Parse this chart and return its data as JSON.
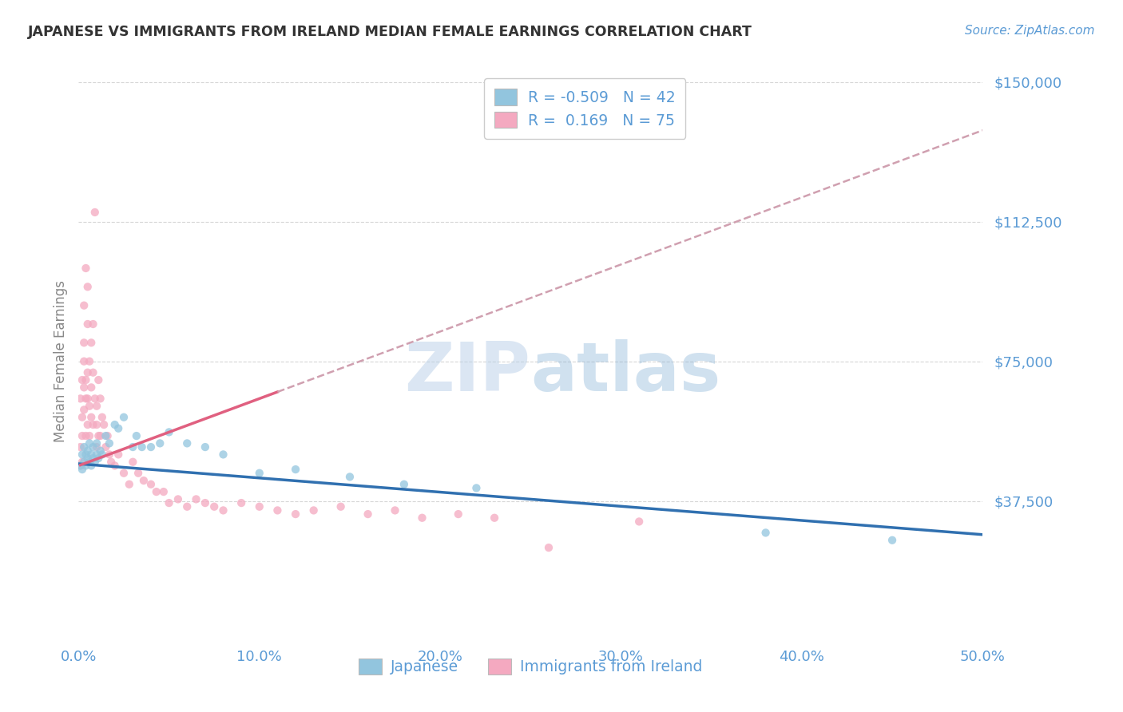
{
  "title": "JAPANESE VS IMMIGRANTS FROM IRELAND MEDIAN FEMALE EARNINGS CORRELATION CHART",
  "source_text": "Source: ZipAtlas.com",
  "ylabel": "Median Female Earnings",
  "xlim": [
    0.0,
    0.5
  ],
  "ylim": [
    0,
    150000
  ],
  "ytick_positions": [
    0,
    37500,
    75000,
    112500,
    150000
  ],
  "ytick_labels": [
    "",
    "$37,500",
    "$75,000",
    "$112,500",
    "$150,000"
  ],
  "xtick_positions": [
    0.0,
    0.1,
    0.2,
    0.3,
    0.4,
    0.5
  ],
  "xtick_labels": [
    "0.0%",
    "10.0%",
    "20.0%",
    "30.0%",
    "40.0%",
    "50.0%"
  ],
  "background_color": "#ffffff",
  "grid_color": "#cccccc",
  "legend_r1": "-0.509",
  "legend_n1": "42",
  "legend_r2": " 0.169",
  "legend_n2": "75",
  "color_japanese": "#92c5de",
  "color_ireland": "#f4a9c0",
  "color_japanese_line": "#3070b0",
  "color_ireland_line": "#e06080",
  "color_ireland_dash": "#d0a0b0",
  "title_color": "#333333",
  "tick_color": "#5b9bd5",
  "japanese_x": [
    0.001,
    0.002,
    0.002,
    0.003,
    0.003,
    0.004,
    0.004,
    0.005,
    0.005,
    0.006,
    0.006,
    0.007,
    0.007,
    0.008,
    0.008,
    0.009,
    0.01,
    0.01,
    0.011,
    0.012,
    0.013,
    0.015,
    0.017,
    0.02,
    0.022,
    0.025,
    0.03,
    0.032,
    0.035,
    0.04,
    0.045,
    0.05,
    0.06,
    0.07,
    0.08,
    0.1,
    0.12,
    0.15,
    0.18,
    0.22,
    0.38,
    0.45
  ],
  "japanese_y": [
    47000,
    46000,
    50000,
    48000,
    52000,
    47000,
    50000,
    49000,
    51000,
    48000,
    53000,
    50000,
    47000,
    49000,
    52000,
    48000,
    50000,
    53000,
    49000,
    51000,
    50000,
    55000,
    53000,
    58000,
    57000,
    60000,
    52000,
    55000,
    52000,
    52000,
    53000,
    56000,
    53000,
    52000,
    50000,
    45000,
    46000,
    44000,
    42000,
    41000,
    29000,
    27000
  ],
  "ireland_x": [
    0.001,
    0.001,
    0.001,
    0.002,
    0.002,
    0.002,
    0.002,
    0.003,
    0.003,
    0.003,
    0.003,
    0.003,
    0.004,
    0.004,
    0.004,
    0.004,
    0.005,
    0.005,
    0.005,
    0.005,
    0.005,
    0.006,
    0.006,
    0.006,
    0.007,
    0.007,
    0.007,
    0.008,
    0.008,
    0.008,
    0.009,
    0.009,
    0.01,
    0.01,
    0.01,
    0.011,
    0.011,
    0.012,
    0.012,
    0.013,
    0.014,
    0.015,
    0.016,
    0.017,
    0.018,
    0.02,
    0.022,
    0.025,
    0.028,
    0.03,
    0.033,
    0.036,
    0.04,
    0.043,
    0.047,
    0.05,
    0.055,
    0.06,
    0.065,
    0.07,
    0.075,
    0.08,
    0.09,
    0.1,
    0.11,
    0.12,
    0.13,
    0.145,
    0.16,
    0.175,
    0.19,
    0.21,
    0.23,
    0.26,
    0.31
  ],
  "ireland_y": [
    47000,
    52000,
    65000,
    60000,
    55000,
    70000,
    48000,
    75000,
    68000,
    80000,
    62000,
    90000,
    55000,
    70000,
    65000,
    100000,
    58000,
    72000,
    85000,
    65000,
    95000,
    63000,
    75000,
    55000,
    68000,
    80000,
    60000,
    72000,
    85000,
    58000,
    115000,
    65000,
    63000,
    52000,
    58000,
    55000,
    70000,
    55000,
    65000,
    60000,
    58000,
    52000,
    55000,
    50000,
    48000,
    47000,
    50000,
    45000,
    42000,
    48000,
    45000,
    43000,
    42000,
    40000,
    40000,
    37000,
    38000,
    36000,
    38000,
    37000,
    36000,
    35000,
    37000,
    36000,
    35000,
    34000,
    35000,
    36000,
    34000,
    35000,
    33000,
    34000,
    33000,
    25000,
    32000
  ]
}
